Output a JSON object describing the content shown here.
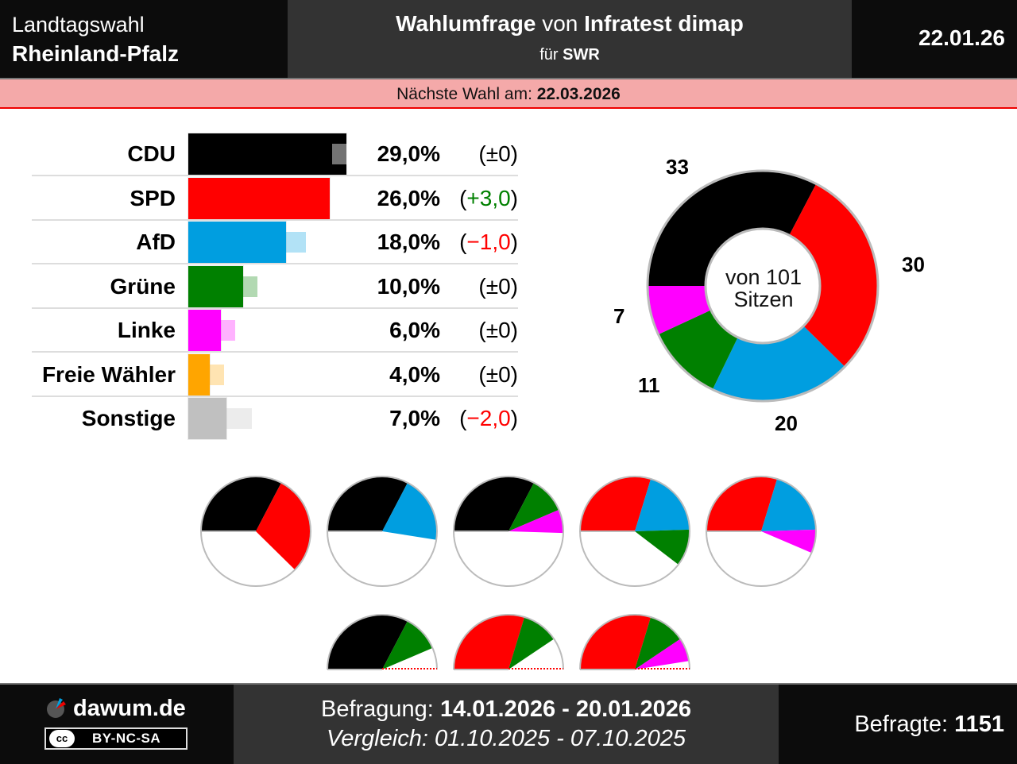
{
  "header": {
    "election_type": "Landtagswahl",
    "state": "Rheinland-Pfalz",
    "title_bold1": "Wahlumfrage",
    "title_mid": " von ",
    "title_bold2": "Infratest dimap",
    "client_prefix": "für ",
    "client": "SWR",
    "date": "22.01.26"
  },
  "next_election": {
    "label": "Nächste Wahl am: ",
    "date": "22.03.2026"
  },
  "colors": {
    "CDU": "#000000",
    "SPD": "#ff0000",
    "AfD": "#009ee0",
    "Grüne": "#008000",
    "Linke": "#ff00ff",
    "Freie Wähler": "#ffa500",
    "Sonstige": "#c0c0c0",
    "positive": "#008000",
    "negative": "#ff0000",
    "neutral": "#000000"
  },
  "chart_data": [
    {
      "type": "bar",
      "title": "Wahlumfrage",
      "categories": [
        "CDU",
        "SPD",
        "AfD",
        "Grüne",
        "Linke",
        "Freie Wähler",
        "Sonstige"
      ],
      "values": [
        29.0,
        26.0,
        18.0,
        10.0,
        6.0,
        4.0,
        7.0
      ],
      "previous": [
        29.0,
        23.0,
        19.0,
        10.0,
        6.0,
        4.0,
        9.0
      ],
      "value_labels": [
        "29,0%",
        "26,0%",
        "18,0%",
        "10,0%",
        "6,0%",
        "4,0%",
        "7,0%"
      ],
      "change_labels": [
        "(±0)",
        "(+3,0)",
        "(−1,0)",
        "(±0)",
        "(±0)",
        "(±0)",
        "(−2,0)"
      ],
      "change_sign": [
        "neutral",
        "positive",
        "negative",
        "neutral",
        "neutral",
        "neutral",
        "negative"
      ],
      "xlim": [
        0,
        30
      ],
      "grid": false
    },
    {
      "type": "pie",
      "title": "Sitzverteilung",
      "center_label_line1": "von 101",
      "center_label_line2": "Sitzen",
      "total": 101,
      "categories": [
        "CDU",
        "SPD",
        "AfD",
        "Grüne",
        "Linke"
      ],
      "values": [
        33,
        30,
        20,
        11,
        7
      ]
    },
    {
      "type": "pie",
      "title": "Koalitionen",
      "total": 101,
      "coalitions": [
        {
          "parties": [
            "CDU",
            "SPD"
          ],
          "seats": [
            33,
            30
          ]
        },
        {
          "parties": [
            "CDU",
            "AfD"
          ],
          "seats": [
            33,
            20
          ]
        },
        {
          "parties": [
            "CDU",
            "Grüne",
            "Linke"
          ],
          "seats": [
            33,
            11,
            7
          ]
        },
        {
          "parties": [
            "SPD",
            "AfD",
            "Grüne"
          ],
          "seats": [
            30,
            20,
            11
          ]
        },
        {
          "parties": [
            "SPD",
            "AfD",
            "Linke"
          ],
          "seats": [
            30,
            20,
            7
          ]
        },
        {
          "parties": [
            "CDU",
            "Grüne"
          ],
          "seats": [
            33,
            11
          ],
          "no_majority": true
        },
        {
          "parties": [
            "SPD",
            "Grüne"
          ],
          "seats": [
            30,
            11
          ],
          "no_majority": true
        },
        {
          "parties": [
            "SPD",
            "Grüne",
            "Linke"
          ],
          "seats": [
            30,
            11,
            7
          ],
          "no_majority": true
        }
      ]
    }
  ],
  "footer": {
    "brand": "dawum.de",
    "license_cc": "cc",
    "license": "BY-NC-SA",
    "survey_label": "Befragung: ",
    "survey_period": "14.01.2026 - 20.01.2026",
    "compare_label": "Vergleich: 01.10.2025 - 07.10.2025",
    "respondents_label": "Befragte: ",
    "respondents": "1151"
  }
}
